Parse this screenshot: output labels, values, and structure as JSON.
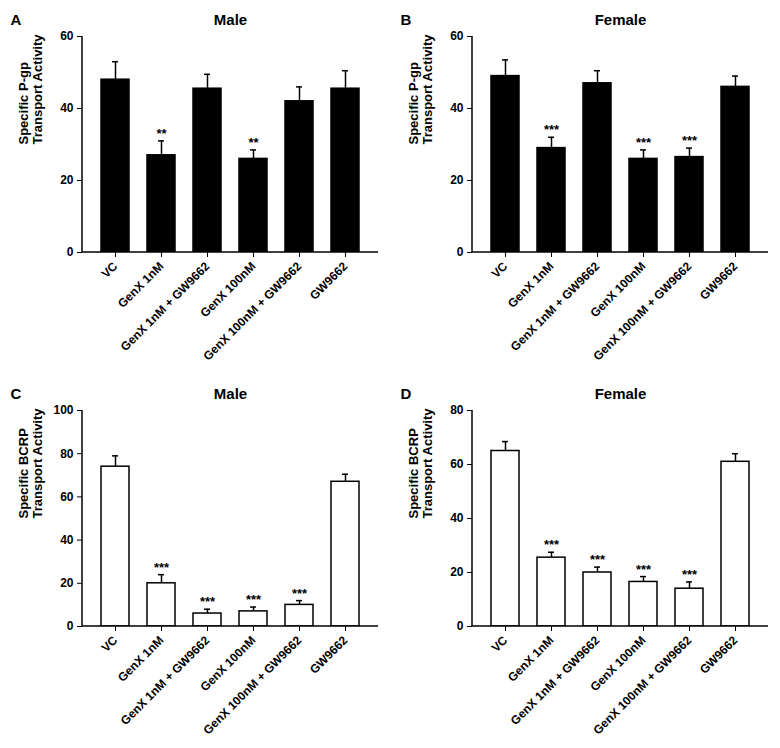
{
  "chart_data": [
    {
      "type": "bar",
      "panel": "A",
      "title": "Male",
      "ylabel": [
        "Specific P-gp",
        "Transport Activity"
      ],
      "categories": [
        "VC",
        "GenX 1nM",
        "GenX 1nM + GW9662",
        "GenX 100nM",
        "GenX 100nM + GW9662",
        "GW9662"
      ],
      "values": [
        48,
        27,
        45.5,
        26,
        42,
        45.5
      ],
      "errors": [
        5,
        4,
        4,
        2.5,
        4,
        5
      ],
      "significance": [
        null,
        "**",
        null,
        "**",
        null,
        null
      ],
      "color": "#000000",
      "ylim": [
        0,
        60
      ],
      "yticks": [
        0,
        20,
        40,
        60
      ]
    },
    {
      "type": "bar",
      "panel": "B",
      "title": "Female",
      "ylabel": [
        "Specific P-gp",
        "Transport Activity"
      ],
      "categories": [
        "VC",
        "GenX 1nM",
        "GenX 1nM + GW9662",
        "GenX 100nM",
        "GenX 100nM + GW9662",
        "GW9662"
      ],
      "values": [
        49,
        29,
        47,
        26,
        26.5,
        46
      ],
      "errors": [
        4.5,
        3,
        3.5,
        2.5,
        2.5,
        3
      ],
      "significance": [
        null,
        "***",
        null,
        "***",
        "***",
        null
      ],
      "color": "#000000",
      "ylim": [
        0,
        60
      ],
      "yticks": [
        0,
        20,
        40,
        60
      ]
    },
    {
      "type": "bar",
      "panel": "C",
      "title": "Male",
      "ylabel": [
        "Specific BCRP",
        "Transport Activity"
      ],
      "categories": [
        "VC",
        "GenX 1nM",
        "GenX 1nM + GW9662",
        "GenX 100nM",
        "GenX 100nM + GW9662",
        "GW9662"
      ],
      "values": [
        74,
        20,
        6,
        7,
        10,
        67
      ],
      "errors": [
        5,
        4,
        2,
        2,
        2,
        3.5
      ],
      "significance": [
        null,
        "***",
        "***",
        "***",
        "***",
        null
      ],
      "color": "#ffffff",
      "ylim": [
        0,
        100
      ],
      "yticks": [
        0,
        20,
        40,
        60,
        80,
        100
      ]
    },
    {
      "type": "bar",
      "panel": "D",
      "title": "Female",
      "ylabel": [
        "Specific BCRP",
        "Transport Activity"
      ],
      "categories": [
        "VC",
        "GenX 1nM",
        "GenX 1nM + GW9662",
        "GenX 100nM",
        "GenX 100nM + GW9662",
        "GW9662"
      ],
      "values": [
        65,
        25.5,
        20,
        16.5,
        14,
        61
      ],
      "errors": [
        3.5,
        2,
        2,
        2,
        2.5,
        3
      ],
      "significance": [
        null,
        "***",
        "***",
        "***",
        "***",
        null
      ],
      "color": "#ffffff",
      "ylim": [
        0,
        80
      ],
      "yticks": [
        0,
        20,
        40,
        60,
        80
      ]
    }
  ]
}
